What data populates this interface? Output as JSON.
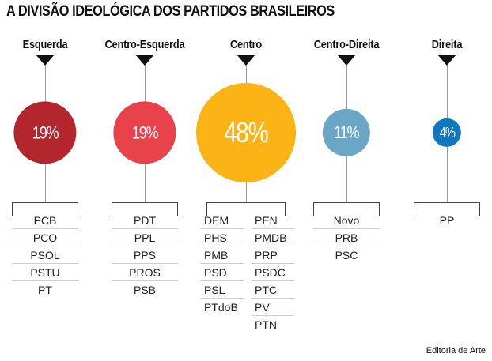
{
  "title": "A DIVISÃO IDEOLÓGICA DOS PARTIDOS BRASILEIROS",
  "credit": "Editoria de Arte",
  "chart_data": {
    "type": "bubble",
    "title": "A DIVISÃO IDEOLÓGICA DOS PARTIDOS BRASILEIROS",
    "categories": [
      "Esquerda",
      "Centro-Esquerda",
      "Centro",
      "Centro-Direita",
      "Direita"
    ],
    "values": [
      19,
      19,
      48,
      11,
      4
    ],
    "value_labels": [
      "19%",
      "19%",
      "48%",
      "11%",
      "4%"
    ],
    "colors": [
      "#b3262e",
      "#e8424a",
      "#fbb316",
      "#6aa6c6",
      "#0f77bd"
    ],
    "parties": [
      [
        "PCB",
        "PCO",
        "PSOL",
        "PSTU",
        "PT"
      ],
      [
        "PDT",
        "PPL",
        "PPS",
        "PROS",
        "PSB"
      ],
      [
        "DEM",
        "PHS",
        "PMB",
        "PSD",
        "PSL",
        "PTdoB",
        "PEN",
        "PMDB",
        "PRP",
        "PSDC",
        "PTC",
        "PV",
        "PTN"
      ],
      [
        "Novo",
        "PRB",
        "PSC"
      ],
      [
        "PP"
      ]
    ]
  }
}
